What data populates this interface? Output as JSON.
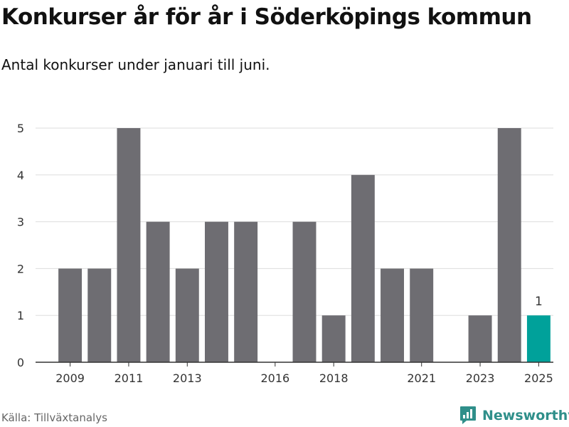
{
  "header": {
    "title": "Konkurser år för år i Söderköpings kommun",
    "subtitle": "Antal konkurser under januari till juni."
  },
  "footer": {
    "source": "Källa: Tillväxtanalys",
    "brand": "Newsworthy",
    "brand_icon": "newsworthy-logo-icon"
  },
  "colors": {
    "bar": "#6e6d72",
    "highlight": "#00a19a",
    "grid": "#dddddd",
    "axis": "#333333",
    "brand": "#2f8f8a"
  },
  "chart_data": {
    "type": "bar",
    "categories": [
      "2009",
      "2010",
      "2011",
      "2012",
      "2013",
      "2014",
      "2015",
      "2016",
      "2017",
      "2018",
      "2019",
      "2020",
      "2021",
      "2022",
      "2023",
      "2024",
      "2025"
    ],
    "values": [
      2,
      2,
      5,
      3,
      2,
      3,
      3,
      0,
      3,
      1,
      4,
      2,
      2,
      0,
      1,
      5,
      1
    ],
    "x_tick_labels": [
      "2009",
      "2011",
      "2013",
      "2016",
      "2018",
      "2021",
      "2023",
      "2025"
    ],
    "y_ticks": [
      0,
      1,
      2,
      3,
      4,
      5
    ],
    "ylim": [
      0,
      5
    ],
    "highlight_category": "2025",
    "annotations": [
      {
        "category": "2025",
        "text": "1"
      }
    ],
    "grid": true,
    "xlabel": "",
    "ylabel": ""
  }
}
